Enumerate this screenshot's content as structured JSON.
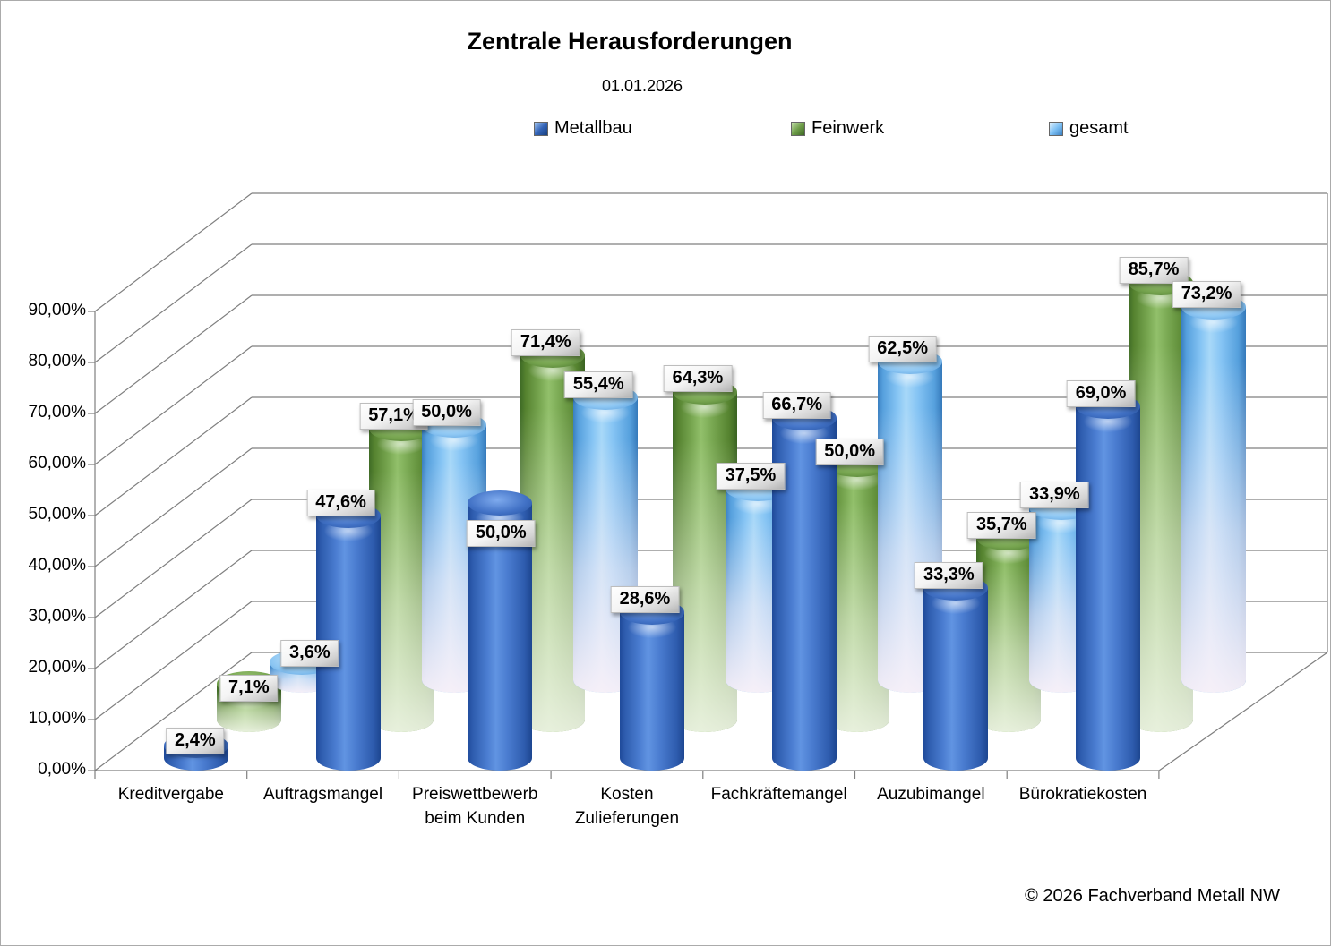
{
  "title": "Zentrale Herausforderungen",
  "subtitle": "01.01.2026",
  "footer": "© 2026 Fachverband Metall NW",
  "legend": [
    {
      "label": "Metallbau",
      "color_light": "#9fc3ef",
      "color_mid": "#3565b8",
      "color_dark": "#17407f"
    },
    {
      "label": "Feinwerk",
      "color_light": "#c2dfa8",
      "color_mid": "#6f9e4a",
      "color_dark": "#3c6622"
    },
    {
      "label": "gesamt",
      "color_light": "#dff0fc",
      "color_mid": "#7ec1f5",
      "color_dark": "#3a7fc1"
    }
  ],
  "chart_data": {
    "type": "bar",
    "subtype": "3d-cylinder",
    "title": "Zentrale Herausforderungen",
    "subtitle": "01.01.2026",
    "categories": [
      "Kreditvergabe",
      "Auftragsmangel",
      "Preiswettbewerb beim Kunden",
      "Kosten Zulieferungen",
      "Fachkräftemangel",
      "Auzubimangel",
      "Bürokratiekosten"
    ],
    "series": [
      {
        "name": "Metallbau",
        "color": "#3b6cc0",
        "values": [
          2.4,
          47.6,
          50.0,
          28.6,
          66.7,
          33.3,
          69.0
        ],
        "labels": [
          "2,4%",
          "47,6%",
          "50,0%",
          "28,6%",
          "66,7%",
          "33,3%",
          "69,0%"
        ]
      },
      {
        "name": "Feinwerk",
        "color": "#6f9e4a",
        "values": [
          7.1,
          57.1,
          71.4,
          64.3,
          50.0,
          35.7,
          85.7
        ],
        "labels": [
          "7,1%",
          "57,1%",
          "71,4%",
          "64,3%",
          "50,0%",
          "35,7%",
          "85,7%"
        ]
      },
      {
        "name": "gesamt",
        "color": "#7ec1f5",
        "values": [
          3.6,
          50.0,
          55.4,
          37.5,
          62.5,
          33.9,
          73.2
        ],
        "labels": [
          "3,6%",
          "50,0%",
          "55,4%",
          "37,5%",
          "62,5%",
          "33,9%",
          "73,2%"
        ]
      }
    ],
    "xlabel": "",
    "ylabel": "",
    "ylim": [
      0,
      90
    ],
    "y_ticks": [
      "0,00%",
      "10,00%",
      "20,00%",
      "30,00%",
      "40,00%",
      "50,00%",
      "60,00%",
      "70,00%",
      "80,00%",
      "90,00%"
    ],
    "grid": true,
    "legend_position": "top"
  }
}
